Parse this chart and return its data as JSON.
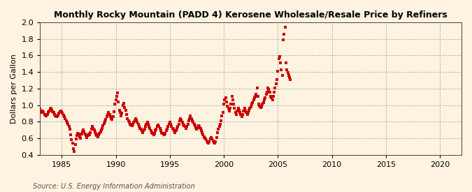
{
  "title": "Monthly Rocky Mountain (PADD 4) Kerosene Wholesale/Resale Price by Refiners",
  "ylabel": "Dollars per Gallon",
  "source": "Source: U.S. Energy Information Administration",
  "bg_color": "#fdf3e0",
  "plot_bg_color": "#fdf3e0",
  "marker_color": "#cc0000",
  "xlim": [
    1983.0,
    2022.0
  ],
  "ylim": [
    0.4,
    2.0
  ],
  "xticks": [
    1985,
    1990,
    1995,
    2000,
    2005,
    2010,
    2015,
    2020
  ],
  "yticks": [
    0.4,
    0.6,
    0.8,
    1.0,
    1.2,
    1.4,
    1.6,
    1.8,
    2.0
  ],
  "data": [
    [
      1983.0,
      0.95
    ],
    [
      1983.08,
      0.92
    ],
    [
      1983.17,
      0.91
    ],
    [
      1983.25,
      0.93
    ],
    [
      1983.33,
      0.91
    ],
    [
      1983.42,
      0.89
    ],
    [
      1983.5,
      0.88
    ],
    [
      1983.58,
      0.87
    ],
    [
      1983.67,
      0.89
    ],
    [
      1983.75,
      0.91
    ],
    [
      1983.83,
      0.93
    ],
    [
      1983.92,
      0.95
    ],
    [
      1984.0,
      0.96
    ],
    [
      1984.08,
      0.94
    ],
    [
      1984.17,
      0.92
    ],
    [
      1984.25,
      0.91
    ],
    [
      1984.33,
      0.89
    ],
    [
      1984.42,
      0.87
    ],
    [
      1984.5,
      0.86
    ],
    [
      1984.58,
      0.87
    ],
    [
      1984.67,
      0.88
    ],
    [
      1984.75,
      0.9
    ],
    [
      1984.83,
      0.92
    ],
    [
      1984.92,
      0.93
    ],
    [
      1985.0,
      0.92
    ],
    [
      1985.08,
      0.9
    ],
    [
      1985.17,
      0.88
    ],
    [
      1985.25,
      0.86
    ],
    [
      1985.33,
      0.84
    ],
    [
      1985.42,
      0.81
    ],
    [
      1985.5,
      0.79
    ],
    [
      1985.58,
      0.77
    ],
    [
      1985.67,
      0.74
    ],
    [
      1985.75,
      0.71
    ],
    [
      1985.83,
      0.64
    ],
    [
      1985.92,
      0.58
    ],
    [
      1986.0,
      0.54
    ],
    [
      1986.08,
      0.47
    ],
    [
      1986.17,
      0.44
    ],
    [
      1986.25,
      0.52
    ],
    [
      1986.33,
      0.59
    ],
    [
      1986.42,
      0.63
    ],
    [
      1986.5,
      0.66
    ],
    [
      1986.58,
      0.65
    ],
    [
      1986.67,
      0.62
    ],
    [
      1986.75,
      0.6
    ],
    [
      1986.83,
      0.65
    ],
    [
      1986.92,
      0.68
    ],
    [
      1987.0,
      0.7
    ],
    [
      1987.08,
      0.68
    ],
    [
      1987.17,
      0.65
    ],
    [
      1987.25,
      0.63
    ],
    [
      1987.33,
      0.61
    ],
    [
      1987.42,
      0.63
    ],
    [
      1987.5,
      0.65
    ],
    [
      1987.58,
      0.64
    ],
    [
      1987.67,
      0.67
    ],
    [
      1987.75,
      0.71
    ],
    [
      1987.83,
      0.74
    ],
    [
      1987.92,
      0.72
    ],
    [
      1988.0,
      0.7
    ],
    [
      1988.08,
      0.68
    ],
    [
      1988.17,
      0.65
    ],
    [
      1988.25,
      0.63
    ],
    [
      1988.33,
      0.62
    ],
    [
      1988.42,
      0.64
    ],
    [
      1988.5,
      0.66
    ],
    [
      1988.58,
      0.68
    ],
    [
      1988.67,
      0.7
    ],
    [
      1988.75,
      0.72
    ],
    [
      1988.83,
      0.75
    ],
    [
      1988.92,
      0.78
    ],
    [
      1989.0,
      0.8
    ],
    [
      1989.08,
      0.83
    ],
    [
      1989.17,
      0.86
    ],
    [
      1989.25,
      0.89
    ],
    [
      1989.33,
      0.91
    ],
    [
      1989.42,
      0.89
    ],
    [
      1989.5,
      0.86
    ],
    [
      1989.58,
      0.84
    ],
    [
      1989.67,
      0.83
    ],
    [
      1989.75,
      0.86
    ],
    [
      1989.83,
      0.92
    ],
    [
      1989.92,
      1.01
    ],
    [
      1990.0,
      1.06
    ],
    [
      1990.08,
      1.11
    ],
    [
      1990.17,
      1.15
    ],
    [
      1990.25,
      1.04
    ],
    [
      1990.33,
      0.94
    ],
    [
      1990.42,
      0.91
    ],
    [
      1990.5,
      0.87
    ],
    [
      1990.58,
      0.9
    ],
    [
      1990.67,
      1.0
    ],
    [
      1990.75,
      1.02
    ],
    [
      1990.83,
      0.97
    ],
    [
      1990.92,
      0.94
    ],
    [
      1991.0,
      0.89
    ],
    [
      1991.08,
      0.84
    ],
    [
      1991.17,
      0.81
    ],
    [
      1991.25,
      0.79
    ],
    [
      1991.33,
      0.77
    ],
    [
      1991.42,
      0.76
    ],
    [
      1991.5,
      0.75
    ],
    [
      1991.58,
      0.77
    ],
    [
      1991.67,
      0.79
    ],
    [
      1991.75,
      0.81
    ],
    [
      1991.83,
      0.84
    ],
    [
      1991.92,
      0.82
    ],
    [
      1992.0,
      0.79
    ],
    [
      1992.08,
      0.77
    ],
    [
      1992.17,
      0.74
    ],
    [
      1992.25,
      0.72
    ],
    [
      1992.33,
      0.71
    ],
    [
      1992.42,
      0.69
    ],
    [
      1992.5,
      0.67
    ],
    [
      1992.58,
      0.69
    ],
    [
      1992.67,
      0.71
    ],
    [
      1992.75,
      0.74
    ],
    [
      1992.83,
      0.77
    ],
    [
      1992.92,
      0.79
    ],
    [
      1993.0,
      0.77
    ],
    [
      1993.08,
      0.74
    ],
    [
      1993.17,
      0.72
    ],
    [
      1993.25,
      0.69
    ],
    [
      1993.33,
      0.67
    ],
    [
      1993.42,
      0.66
    ],
    [
      1993.5,
      0.64
    ],
    [
      1993.58,
      0.66
    ],
    [
      1993.67,
      0.69
    ],
    [
      1993.75,
      0.71
    ],
    [
      1993.83,
      0.74
    ],
    [
      1993.92,
      0.76
    ],
    [
      1994.0,
      0.74
    ],
    [
      1994.08,
      0.72
    ],
    [
      1994.17,
      0.69
    ],
    [
      1994.25,
      0.67
    ],
    [
      1994.33,
      0.66
    ],
    [
      1994.42,
      0.65
    ],
    [
      1994.5,
      0.64
    ],
    [
      1994.58,
      0.66
    ],
    [
      1994.67,
      0.69
    ],
    [
      1994.75,
      0.71
    ],
    [
      1994.83,
      0.74
    ],
    [
      1994.92,
      0.77
    ],
    [
      1995.0,
      0.79
    ],
    [
      1995.08,
      0.77
    ],
    [
      1995.17,
      0.74
    ],
    [
      1995.25,
      0.72
    ],
    [
      1995.33,
      0.71
    ],
    [
      1995.42,
      0.69
    ],
    [
      1995.5,
      0.67
    ],
    [
      1995.58,
      0.69
    ],
    [
      1995.67,
      0.72
    ],
    [
      1995.75,
      0.74
    ],
    [
      1995.83,
      0.77
    ],
    [
      1995.92,
      0.81
    ],
    [
      1996.0,
      0.84
    ],
    [
      1996.08,
      0.82
    ],
    [
      1996.17,
      0.79
    ],
    [
      1996.25,
      0.77
    ],
    [
      1996.33,
      0.75
    ],
    [
      1996.42,
      0.74
    ],
    [
      1996.5,
      0.72
    ],
    [
      1996.58,
      0.74
    ],
    [
      1996.67,
      0.77
    ],
    [
      1996.75,
      0.81
    ],
    [
      1996.83,
      0.84
    ],
    [
      1996.92,
      0.87
    ],
    [
      1997.0,
      0.84
    ],
    [
      1997.08,
      0.81
    ],
    [
      1997.17,
      0.79
    ],
    [
      1997.25,
      0.77
    ],
    [
      1997.33,
      0.75
    ],
    [
      1997.42,
      0.73
    ],
    [
      1997.5,
      0.71
    ],
    [
      1997.58,
      0.73
    ],
    [
      1997.67,
      0.75
    ],
    [
      1997.75,
      0.74
    ],
    [
      1997.83,
      0.72
    ],
    [
      1997.92,
      0.69
    ],
    [
      1998.0,
      0.67
    ],
    [
      1998.08,
      0.64
    ],
    [
      1998.17,
      0.62
    ],
    [
      1998.25,
      0.6
    ],
    [
      1998.33,
      0.59
    ],
    [
      1998.42,
      0.57
    ],
    [
      1998.5,
      0.55
    ],
    [
      1998.58,
      0.54
    ],
    [
      1998.67,
      0.56
    ],
    [
      1998.75,
      0.59
    ],
    [
      1998.83,
      0.61
    ],
    [
      1998.92,
      0.59
    ],
    [
      1999.0,
      0.57
    ],
    [
      1999.08,
      0.55
    ],
    [
      1999.17,
      0.54
    ],
    [
      1999.25,
      0.56
    ],
    [
      1999.33,
      0.61
    ],
    [
      1999.42,
      0.67
    ],
    [
      1999.5,
      0.71
    ],
    [
      1999.58,
      0.74
    ],
    [
      1999.67,
      0.77
    ],
    [
      1999.75,
      0.81
    ],
    [
      1999.83,
      0.87
    ],
    [
      1999.92,
      0.91
    ],
    [
      2000.0,
      1.01
    ],
    [
      2000.08,
      1.06
    ],
    [
      2000.17,
      1.09
    ],
    [
      2000.25,
      1.04
    ],
    [
      2000.33,
      0.99
    ],
    [
      2000.42,
      0.96
    ],
    [
      2000.5,
      0.93
    ],
    [
      2000.58,
      0.96
    ],
    [
      2000.67,
      1.01
    ],
    [
      2000.75,
      1.11
    ],
    [
      2000.83,
      1.06
    ],
    [
      2000.92,
      1.01
    ],
    [
      2001.0,
      0.96
    ],
    [
      2001.08,
      0.91
    ],
    [
      2001.17,
      0.89
    ],
    [
      2001.25,
      0.93
    ],
    [
      2001.33,
      0.96
    ],
    [
      2001.42,
      0.94
    ],
    [
      2001.5,
      0.91
    ],
    [
      2001.58,
      0.89
    ],
    [
      2001.67,
      0.86
    ],
    [
      2001.75,
      0.89
    ],
    [
      2001.83,
      0.93
    ],
    [
      2001.92,
      0.96
    ],
    [
      2002.0,
      0.93
    ],
    [
      2002.08,
      0.91
    ],
    [
      2002.17,
      0.89
    ],
    [
      2002.25,
      0.91
    ],
    [
      2002.33,
      0.94
    ],
    [
      2002.42,
      0.96
    ],
    [
      2002.5,
      0.98
    ],
    [
      2002.58,
      1.01
    ],
    [
      2002.67,
      1.03
    ],
    [
      2002.75,
      1.06
    ],
    [
      2002.83,
      1.09
    ],
    [
      2002.92,
      1.11
    ],
    [
      2003.0,
      1.13
    ],
    [
      2003.08,
      1.21
    ],
    [
      2003.17,
      1.11
    ],
    [
      2003.25,
      1.01
    ],
    [
      2003.33,
      0.99
    ],
    [
      2003.42,
      0.97
    ],
    [
      2003.5,
      0.98
    ],
    [
      2003.58,
      1.01
    ],
    [
      2003.67,
      1.03
    ],
    [
      2003.75,
      1.06
    ],
    [
      2003.83,
      1.09
    ],
    [
      2003.92,
      1.13
    ],
    [
      2004.0,
      1.16
    ],
    [
      2004.08,
      1.21
    ],
    [
      2004.17,
      1.19
    ],
    [
      2004.25,
      1.16
    ],
    [
      2004.33,
      1.11
    ],
    [
      2004.42,
      1.09
    ],
    [
      2004.5,
      1.06
    ],
    [
      2004.58,
      1.11
    ],
    [
      2004.67,
      1.16
    ],
    [
      2004.75,
      1.21
    ],
    [
      2004.83,
      1.26
    ],
    [
      2004.92,
      1.31
    ],
    [
      2005.0,
      1.41
    ],
    [
      2005.08,
      1.56
    ],
    [
      2005.17,
      1.59
    ],
    [
      2005.25,
      1.51
    ],
    [
      2005.33,
      1.43
    ],
    [
      2005.42,
      1.36
    ],
    [
      2005.5,
      1.79
    ],
    [
      2005.58,
      1.86
    ],
    [
      2005.67,
      1.94
    ],
    [
      2005.75,
      1.51
    ],
    [
      2005.83,
      1.43
    ],
    [
      2005.92,
      1.39
    ],
    [
      2006.0,
      1.36
    ],
    [
      2006.08,
      1.33
    ],
    [
      2006.17,
      1.31
    ]
  ]
}
